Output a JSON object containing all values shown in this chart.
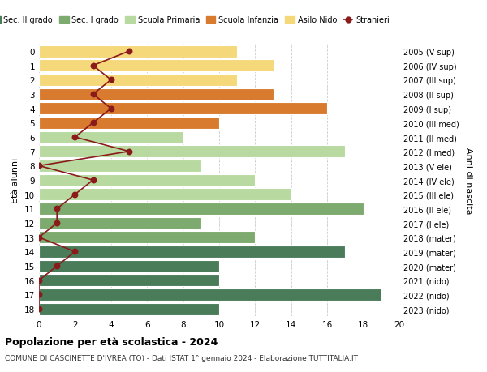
{
  "ages": [
    18,
    17,
    16,
    15,
    14,
    13,
    12,
    11,
    10,
    9,
    8,
    7,
    6,
    5,
    4,
    3,
    2,
    1,
    0
  ],
  "right_labels": [
    "2005 (V sup)",
    "2006 (IV sup)",
    "2007 (III sup)",
    "2008 (II sup)",
    "2009 (I sup)",
    "2010 (III med)",
    "2011 (II med)",
    "2012 (I med)",
    "2013 (V ele)",
    "2014 (IV ele)",
    "2015 (III ele)",
    "2016 (II ele)",
    "2017 (I ele)",
    "2018 (mater)",
    "2019 (mater)",
    "2020 (mater)",
    "2021 (nido)",
    "2022 (nido)",
    "2023 (nido)"
  ],
  "bar_values": [
    10,
    19,
    10,
    10,
    17,
    12,
    9,
    18,
    14,
    12,
    9,
    17,
    8,
    10,
    16,
    13,
    11,
    13,
    11
  ],
  "bar_colors": [
    "#4a7c59",
    "#4a7c59",
    "#4a7c59",
    "#4a7c59",
    "#4a7c59",
    "#7daa6e",
    "#7daa6e",
    "#7daa6e",
    "#b8d9a0",
    "#b8d9a0",
    "#b8d9a0",
    "#b8d9a0",
    "#b8d9a0",
    "#d97b2f",
    "#d97b2f",
    "#d97b2f",
    "#f5d87a",
    "#f5d87a",
    "#f5d87a"
  ],
  "stranieri_values": [
    0,
    0,
    0,
    1,
    2,
    0,
    1,
    1,
    2,
    3,
    0,
    5,
    2,
    3,
    4,
    3,
    4,
    3,
    5
  ],
  "stranieri_color": "#8b1a1a",
  "legend_items": [
    {
      "label": "Sec. II grado",
      "color": "#4a7c59"
    },
    {
      "label": "Sec. I grado",
      "color": "#7daa6e"
    },
    {
      "label": "Scuola Primaria",
      "color": "#b8d9a0"
    },
    {
      "label": "Scuola Infanzia",
      "color": "#d97b2f"
    },
    {
      "label": "Asilo Nido",
      "color": "#f5d87a"
    },
    {
      "label": "Stranieri",
      "color": "#8b1a1a"
    }
  ],
  "ylabel_left": "Età alunni",
  "ylabel_right": "Anni di nascita",
  "title": "Popolazione per età scolastica - 2024",
  "subtitle": "COMUNE DI CASCINETTE D'IVREA (TO) - Dati ISTAT 1° gennaio 2024 - Elaborazione TUTTITALIA.IT",
  "xlim": [
    0,
    20
  ],
  "xticks": [
    0,
    2,
    4,
    6,
    8,
    10,
    12,
    14,
    16,
    18,
    20
  ],
  "background_color": "#ffffff",
  "grid_color": "#cccccc"
}
